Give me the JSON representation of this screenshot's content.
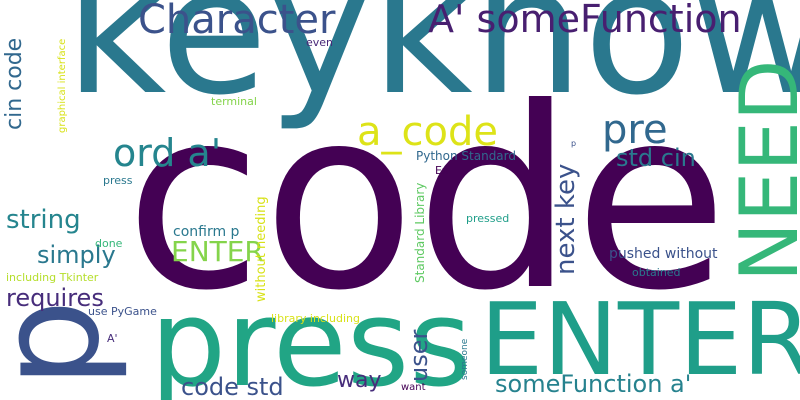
{
  "words": [
    {
      "text": "code",
      "color": "#440154"
    },
    {
      "text": "keyknow",
      "color": "#2a788e"
    },
    {
      "text": "p",
      "color": "#3b528b"
    },
    {
      "text": "press",
      "color": "#21a585"
    },
    {
      "text": "ENTER",
      "color": "#1f9e89"
    },
    {
      "text": "NEED",
      "color": "#35b779"
    },
    {
      "text": "Character",
      "color": "#3b528b"
    },
    {
      "text": "A' someFunction",
      "color": "#481f70"
    },
    {
      "text": "a_code",
      "color": "#dde318"
    },
    {
      "text": "pre",
      "color": "#31688e"
    },
    {
      "text": "ord a'",
      "color": "#25858e"
    },
    {
      "text": "std cin",
      "color": "#2a788e"
    },
    {
      "text": "next key",
      "color": "#3b528b"
    },
    {
      "text": "string",
      "color": "#25858e"
    },
    {
      "text": "simply",
      "color": "#2a788e"
    },
    {
      "text": "ENTER",
      "color": "#84d44b"
    },
    {
      "text": "requires",
      "color": "#472d7b"
    },
    {
      "text": "cin code",
      "color": "#31688e"
    },
    {
      "text": "user",
      "color": "#3b528b"
    },
    {
      "text": "way",
      "color": "#472d7b"
    },
    {
      "text": "code std",
      "color": "#3b528b"
    },
    {
      "text": "someFunction a'",
      "color": "#26828e"
    },
    {
      "text": "confirm p",
      "color": "#2a788e"
    },
    {
      "text": "pushed without",
      "color": "#3b528b"
    },
    {
      "text": "without needing",
      "color": "#d8e219"
    },
    {
      "text": "Python Standard",
      "color": "#31688e"
    },
    {
      "text": "Standard Library",
      "color": "#5ec962"
    },
    {
      "text": "graphical interface",
      "color": "#d8e219"
    },
    {
      "text": "terminal",
      "color": "#84d44b"
    },
    {
      "text": "even",
      "color": "#482878"
    },
    {
      "text": "press",
      "color": "#2a788e"
    },
    {
      "text": "done",
      "color": "#35b779"
    },
    {
      "text": "including Tkinter",
      "color": "#b5de2b"
    },
    {
      "text": "use PyGame",
      "color": "#3b528b"
    },
    {
      "text": "library including",
      "color": "#d8e219"
    },
    {
      "text": "Ex",
      "color": "#440154"
    },
    {
      "text": "pressed",
      "color": "#1f9e89"
    },
    {
      "text": "obtained",
      "color": "#2a788e"
    },
    {
      "text": "A'",
      "color": "#472d7b"
    },
    {
      "text": "want",
      "color": "#440154"
    },
    {
      "text": "someone",
      "color": "#2a788e"
    },
    {
      "text": "p",
      "color": "#3b528b"
    }
  ]
}
